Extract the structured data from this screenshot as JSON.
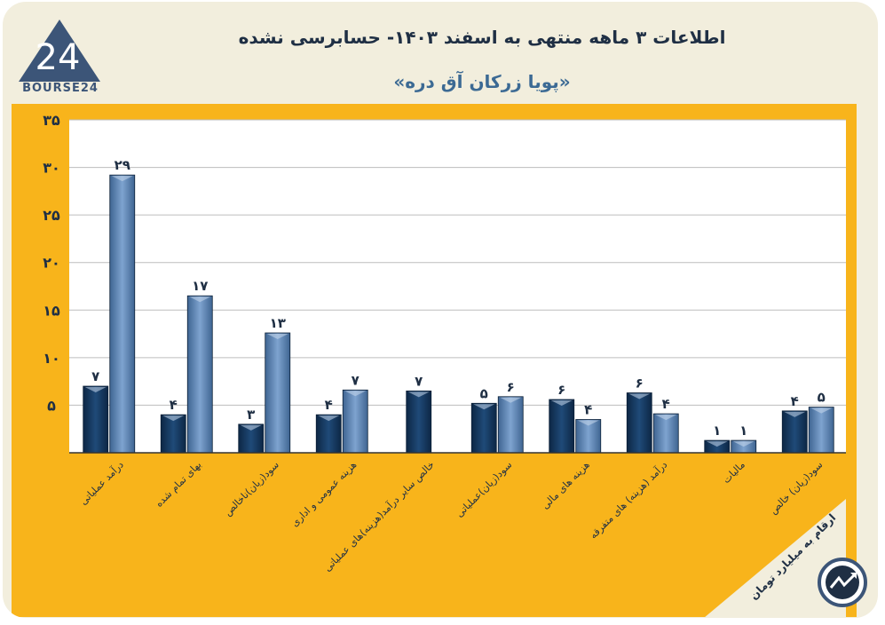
{
  "header": {
    "title": "اطلاعات ۳ ماهه منتهی به اسفند ۱۴۰۳- حسابرسی نشده",
    "subtitle": "«پویا زرکان آق دره»",
    "logo_text": "BOURSE24",
    "logo_mark": "24"
  },
  "note": "ارقام به میلیارد تومان",
  "colors": {
    "panel": "#f8b41b",
    "plot_bg": "#ffffff",
    "series_dark": "#173b63",
    "series_light": "#5b82b1",
    "brand": "#3c5578"
  },
  "chart_data": {
    "type": "bar",
    "title": "اطلاعات ۳ ماهه منتهی به اسفند ۱۴۰۳- حسابرسی نشده",
    "ylim": [
      0,
      35
    ],
    "yticks": [
      0,
      5,
      10,
      15,
      20,
      25,
      30,
      35
    ],
    "ytick_labels": [
      "",
      "۵",
      "۱۰",
      "۱۵",
      "۲۰",
      "۲۵",
      "۳۰",
      "۳۵"
    ],
    "grid": true,
    "categories": [
      "درآمد عملیاتی",
      "بهای تمام شده",
      "سود(زیان)ناخالص",
      "هزینه عمومی و اداری",
      "خالص سایر درآمد(هزینه)های عملیاتی",
      "سود(زیان)عملیاتی",
      "هزینه های مالی",
      "درآمد (هزینه) های متفرقه",
      "مالیات",
      "سود(زیان) خالص"
    ],
    "series": [
      {
        "name": "series-1",
        "values": [
          7,
          4,
          3,
          4,
          6.5,
          5.2,
          5.6,
          6.3,
          1.3,
          4.4
        ],
        "labels": [
          "۷",
          "۴",
          "۳",
          "۴",
          "۷",
          "۵",
          "۶",
          "۶",
          "۱",
          "۴"
        ]
      },
      {
        "name": "series-2",
        "values": [
          29.2,
          16.5,
          12.6,
          6.6,
          null,
          5.9,
          3.5,
          4.1,
          1.3,
          4.8
        ],
        "labels": [
          "۲۹",
          "۱۷",
          "۱۳",
          "۷",
          "",
          "۶",
          "۴",
          "۴",
          "۱",
          "۵"
        ]
      }
    ]
  }
}
